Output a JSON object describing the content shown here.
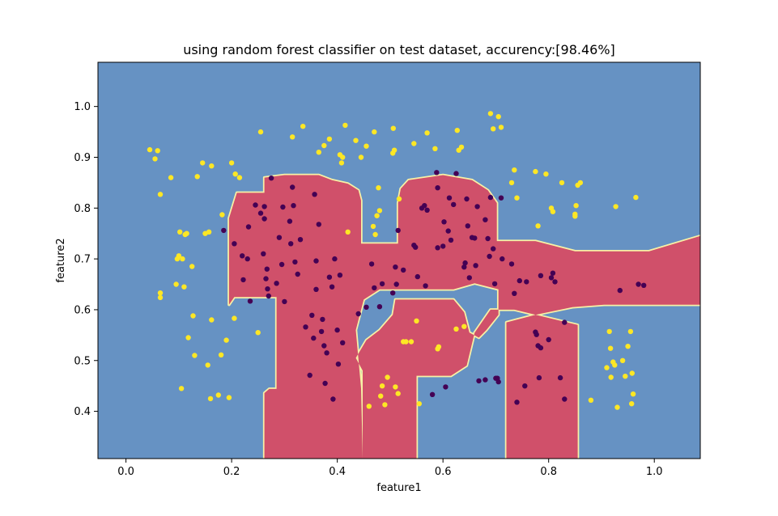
{
  "chart_data": {
    "type": "scatter",
    "title": "using random forest classifier on test dataset, accurency:[98.46%]",
    "xlabel": "feature1",
    "ylabel": "feature2",
    "xlim": [
      -0.053,
      1.087
    ],
    "ylim": [
      0.307,
      1.087
    ],
    "xticks": [
      "0.0",
      "0.2",
      "0.4",
      "0.6",
      "0.8",
      "1.0"
    ],
    "yticks": [
      "0.4",
      "0.5",
      "0.6",
      "0.7",
      "0.8",
      "0.9",
      "1.0"
    ],
    "grid": false,
    "colors": {
      "background_region": "#6692c3",
      "positive_region": "#d0506a",
      "boundary_glow": "#f7f1a6",
      "class_0_point": "#440154",
      "class_1_point": "#fde725"
    },
    "decision_region_class_1": [
      [
        0.262,
        0.307
      ],
      [
        0.262,
        0.436
      ],
      [
        0.271,
        0.444
      ],
      [
        0.285,
        0.444
      ],
      [
        0.285,
        0.625
      ],
      [
        0.205,
        0.625
      ],
      [
        0.195,
        0.61
      ],
      [
        0.195,
        0.78
      ],
      [
        0.21,
        0.83
      ],
      [
        0.262,
        0.83
      ],
      [
        0.262,
        0.86
      ],
      [
        0.3,
        0.865
      ],
      [
        0.365,
        0.865
      ],
      [
        0.39,
        0.855
      ],
      [
        0.42,
        0.848
      ],
      [
        0.44,
        0.835
      ],
      [
        0.445,
        0.815
      ],
      [
        0.445,
        0.73
      ],
      [
        0.515,
        0.73
      ],
      [
        0.515,
        0.81
      ],
      [
        0.52,
        0.838
      ],
      [
        0.535,
        0.855
      ],
      [
        0.6,
        0.865
      ],
      [
        0.655,
        0.855
      ],
      [
        0.685,
        0.835
      ],
      [
        0.702,
        0.81
      ],
      [
        0.702,
        0.735
      ],
      [
        0.775,
        0.735
      ],
      [
        0.85,
        0.715
      ],
      [
        0.99,
        0.715
      ],
      [
        1.087,
        0.745
      ],
      [
        1.087,
        0.61
      ],
      [
        0.905,
        0.61
      ],
      [
        0.845,
        0.605
      ],
      [
        0.775,
        0.59
      ],
      [
        0.72,
        0.575
      ],
      [
        0.72,
        0.545
      ],
      [
        0.72,
        0.49
      ],
      [
        0.72,
        0.307
      ],
      [
        0.855,
        0.307
      ],
      [
        0.855,
        0.57
      ],
      [
        0.735,
        0.6
      ],
      [
        0.69,
        0.6
      ],
      [
        0.66,
        0.555
      ],
      [
        0.645,
        0.49
      ],
      [
        0.615,
        0.47
      ],
      [
        0.55,
        0.47
      ],
      [
        0.55,
        0.307
      ],
      [
        0.448,
        0.307
      ],
      [
        0.448,
        0.48
      ],
      [
        0.435,
        0.505
      ],
      [
        0.455,
        0.54
      ],
      [
        0.48,
        0.56
      ],
      [
        0.505,
        0.59
      ],
      [
        0.51,
        0.62
      ],
      [
        0.62,
        0.62
      ],
      [
        0.64,
        0.595
      ],
      [
        0.65,
        0.555
      ],
      [
        0.668,
        0.545
      ],
      [
        0.682,
        0.56
      ],
      [
        0.705,
        0.59
      ],
      [
        0.705,
        0.64
      ],
      [
        0.66,
        0.652
      ],
      [
        0.62,
        0.64
      ],
      [
        0.48,
        0.64
      ],
      [
        0.45,
        0.62
      ],
      [
        0.435,
        0.56
      ],
      [
        0.445,
        0.445
      ],
      [
        0.448,
        0.307
      ]
    ],
    "series": [
      {
        "color": "#fde725",
        "points": [
          [
            0.045,
            0.915
          ],
          [
            0.055,
            0.897
          ],
          [
            0.06,
            0.913
          ],
          [
            0.065,
            0.827
          ],
          [
            0.065,
            0.633
          ],
          [
            0.065,
            0.624
          ],
          [
            0.085,
            0.86
          ],
          [
            0.095,
            0.65
          ],
          [
            0.097,
            0.7
          ],
          [
            0.1,
            0.706
          ],
          [
            0.102,
            0.753
          ],
          [
            0.105,
            0.445
          ],
          [
            0.107,
            0.7
          ],
          [
            0.11,
            0.645
          ],
          [
            0.112,
            0.748
          ],
          [
            0.115,
            0.75
          ],
          [
            0.118,
            0.545
          ],
          [
            0.125,
            0.685
          ],
          [
            0.127,
            0.588
          ],
          [
            0.13,
            0.51
          ],
          [
            0.135,
            0.862
          ],
          [
            0.145,
            0.889
          ],
          [
            0.15,
            0.75
          ],
          [
            0.155,
            0.491
          ],
          [
            0.157,
            0.753
          ],
          [
            0.16,
            0.425
          ],
          [
            0.162,
            0.58
          ],
          [
            0.162,
            0.883
          ],
          [
            0.175,
            0.432
          ],
          [
            0.18,
            0.511
          ],
          [
            0.182,
            0.787
          ],
          [
            0.19,
            0.54
          ],
          [
            0.195,
            0.427
          ],
          [
            0.2,
            0.889
          ],
          [
            0.205,
            0.583
          ],
          [
            0.207,
            0.867
          ],
          [
            0.215,
            0.86
          ],
          [
            0.255,
            0.95
          ],
          [
            0.25,
            0.555
          ],
          [
            0.315,
            0.94
          ],
          [
            0.335,
            0.961
          ],
          [
            0.365,
            0.91
          ],
          [
            0.375,
            0.923
          ],
          [
            0.385,
            0.936
          ],
          [
            0.405,
            0.905
          ],
          [
            0.408,
            0.889
          ],
          [
            0.41,
            0.9
          ],
          [
            0.415,
            0.963
          ],
          [
            0.42,
            0.753
          ],
          [
            0.435,
            0.933
          ],
          [
            0.445,
            0.9
          ],
          [
            0.455,
            0.922
          ],
          [
            0.46,
            0.41
          ],
          [
            0.468,
            0.764
          ],
          [
            0.47,
            0.95
          ],
          [
            0.472,
            0.748
          ],
          [
            0.475,
            0.785
          ],
          [
            0.478,
            0.84
          ],
          [
            0.48,
            0.795
          ],
          [
            0.482,
            0.43
          ],
          [
            0.485,
            0.45
          ],
          [
            0.49,
            0.413
          ],
          [
            0.495,
            0.467
          ],
          [
            0.505,
            0.908
          ],
          [
            0.506,
            0.957
          ],
          [
            0.508,
            0.914
          ],
          [
            0.51,
            0.448
          ],
          [
            0.515,
            0.435
          ],
          [
            0.517,
            0.818
          ],
          [
            0.525,
            0.537
          ],
          [
            0.53,
            0.537
          ],
          [
            0.54,
            0.537
          ],
          [
            0.545,
            0.927
          ],
          [
            0.55,
            0.578
          ],
          [
            0.555,
            0.415
          ],
          [
            0.57,
            0.948
          ],
          [
            0.585,
            0.917
          ],
          [
            0.59,
            0.523
          ],
          [
            0.592,
            0.527
          ],
          [
            0.625,
            0.562
          ],
          [
            0.627,
            0.953
          ],
          [
            0.63,
            0.914
          ],
          [
            0.635,
            0.92
          ],
          [
            0.64,
            0.567
          ],
          [
            0.69,
            0.986
          ],
          [
            0.695,
            0.956
          ],
          [
            0.705,
            0.98
          ],
          [
            0.71,
            0.959
          ],
          [
            0.73,
            0.85
          ],
          [
            0.735,
            0.875
          ],
          [
            0.74,
            0.82
          ],
          [
            0.775,
            0.872
          ],
          [
            0.78,
            0.765
          ],
          [
            0.795,
            0.867
          ],
          [
            0.805,
            0.8
          ],
          [
            0.808,
            0.793
          ],
          [
            0.825,
            0.85
          ],
          [
            0.85,
            0.784
          ],
          [
            0.85,
            0.788
          ],
          [
            0.852,
            0.805
          ],
          [
            0.855,
            0.845
          ],
          [
            0.86,
            0.85
          ],
          [
            0.88,
            0.422
          ],
          [
            0.91,
            0.486
          ],
          [
            0.915,
            0.557
          ],
          [
            0.917,
            0.524
          ],
          [
            0.918,
            0.467
          ],
          [
            0.922,
            0.497
          ],
          [
            0.925,
            0.491
          ],
          [
            0.927,
            0.803
          ],
          [
            0.93,
            0.408
          ],
          [
            0.94,
            0.5
          ],
          [
            0.945,
            0.469
          ],
          [
            0.95,
            0.528
          ],
          [
            0.955,
            0.557
          ],
          [
            0.957,
            0.415
          ],
          [
            0.958,
            0.475
          ],
          [
            0.96,
            0.434
          ],
          [
            0.965,
            0.821
          ]
        ]
      },
      {
        "color": "#440154",
        "points": [
          [
            0.185,
            0.756
          ],
          [
            0.205,
            0.73
          ],
          [
            0.22,
            0.706
          ],
          [
            0.222,
            0.659
          ],
          [
            0.23,
            0.7
          ],
          [
            0.232,
            0.763
          ],
          [
            0.235,
            0.617
          ],
          [
            0.245,
            0.806
          ],
          [
            0.255,
            0.79
          ],
          [
            0.26,
            0.71
          ],
          [
            0.262,
            0.803
          ],
          [
            0.262,
            0.779
          ],
          [
            0.265,
            0.661
          ],
          [
            0.267,
            0.68
          ],
          [
            0.268,
            0.641
          ],
          [
            0.27,
            0.627
          ],
          [
            0.275,
            0.859
          ],
          [
            0.285,
            0.652
          ],
          [
            0.29,
            0.742
          ],
          [
            0.295,
            0.689
          ],
          [
            0.297,
            0.802
          ],
          [
            0.3,
            0.616
          ],
          [
            0.31,
            0.774
          ],
          [
            0.312,
            0.73
          ],
          [
            0.315,
            0.841
          ],
          [
            0.317,
            0.805
          ],
          [
            0.32,
            0.694
          ],
          [
            0.325,
            0.67
          ],
          [
            0.33,
            0.738
          ],
          [
            0.34,
            0.566
          ],
          [
            0.348,
            0.471
          ],
          [
            0.352,
            0.589
          ],
          [
            0.355,
            0.544
          ],
          [
            0.357,
            0.827
          ],
          [
            0.36,
            0.64
          ],
          [
            0.36,
            0.696
          ],
          [
            0.365,
            0.768
          ],
          [
            0.37,
            0.557
          ],
          [
            0.372,
            0.581
          ],
          [
            0.375,
            0.529
          ],
          [
            0.377,
            0.455
          ],
          [
            0.38,
            0.515
          ],
          [
            0.385,
            0.664
          ],
          [
            0.39,
            0.645
          ],
          [
            0.392,
            0.424
          ],
          [
            0.395,
            0.7
          ],
          [
            0.4,
            0.56
          ],
          [
            0.402,
            0.493
          ],
          [
            0.405,
            0.668
          ],
          [
            0.41,
            0.535
          ],
          [
            0.44,
            0.592
          ],
          [
            0.455,
            0.605
          ],
          [
            0.465,
            0.69
          ],
          [
            0.47,
            0.643
          ],
          [
            0.48,
            0.606
          ],
          [
            0.485,
            0.651
          ],
          [
            0.505,
            0.633
          ],
          [
            0.51,
            0.684
          ],
          [
            0.512,
            0.65
          ],
          [
            0.515,
            0.756
          ],
          [
            0.525,
            0.678
          ],
          [
            0.545,
            0.727
          ],
          [
            0.548,
            0.723
          ],
          [
            0.552,
            0.665
          ],
          [
            0.56,
            0.8
          ],
          [
            0.565,
            0.805
          ],
          [
            0.567,
            0.647
          ],
          [
            0.57,
            0.796
          ],
          [
            0.58,
            0.433
          ],
          [
            0.588,
            0.87
          ],
          [
            0.59,
            0.84
          ],
          [
            0.59,
            0.722
          ],
          [
            0.6,
            0.725
          ],
          [
            0.602,
            0.773
          ],
          [
            0.605,
            0.448
          ],
          [
            0.61,
            0.755
          ],
          [
            0.612,
            0.82
          ],
          [
            0.615,
            0.737
          ],
          [
            0.62,
            0.807
          ],
          [
            0.625,
            0.868
          ],
          [
            0.64,
            0.684
          ],
          [
            0.642,
            0.692
          ],
          [
            0.645,
            0.818
          ],
          [
            0.647,
            0.765
          ],
          [
            0.65,
            0.663
          ],
          [
            0.655,
            0.742
          ],
          [
            0.66,
            0.741
          ],
          [
            0.662,
            0.687
          ],
          [
            0.665,
            0.803
          ],
          [
            0.668,
            0.46
          ],
          [
            0.68,
            0.462
          ],
          [
            0.68,
            0.777
          ],
          [
            0.685,
            0.74
          ],
          [
            0.688,
            0.705
          ],
          [
            0.69,
            0.821
          ],
          [
            0.695,
            0.72
          ],
          [
            0.698,
            0.651
          ],
          [
            0.7,
            0.465
          ],
          [
            0.703,
            0.465
          ],
          [
            0.705,
            0.458
          ],
          [
            0.71,
            0.82
          ],
          [
            0.712,
            0.7
          ],
          [
            0.73,
            0.69
          ],
          [
            0.735,
            0.632
          ],
          [
            0.74,
            0.418
          ],
          [
            0.745,
            0.657
          ],
          [
            0.755,
            0.45
          ],
          [
            0.758,
            0.655
          ],
          [
            0.775,
            0.556
          ],
          [
            0.777,
            0.551
          ],
          [
            0.78,
            0.529
          ],
          [
            0.782,
            0.466
          ],
          [
            0.785,
            0.525
          ],
          [
            0.785,
            0.667
          ],
          [
            0.8,
            0.541
          ],
          [
            0.805,
            0.663
          ],
          [
            0.808,
            0.672
          ],
          [
            0.812,
            0.655
          ],
          [
            0.822,
            0.466
          ],
          [
            0.83,
            0.424
          ],
          [
            0.83,
            0.575
          ],
          [
            0.935,
            0.638
          ],
          [
            0.97,
            0.65
          ],
          [
            0.98,
            0.648
          ]
        ]
      }
    ]
  }
}
